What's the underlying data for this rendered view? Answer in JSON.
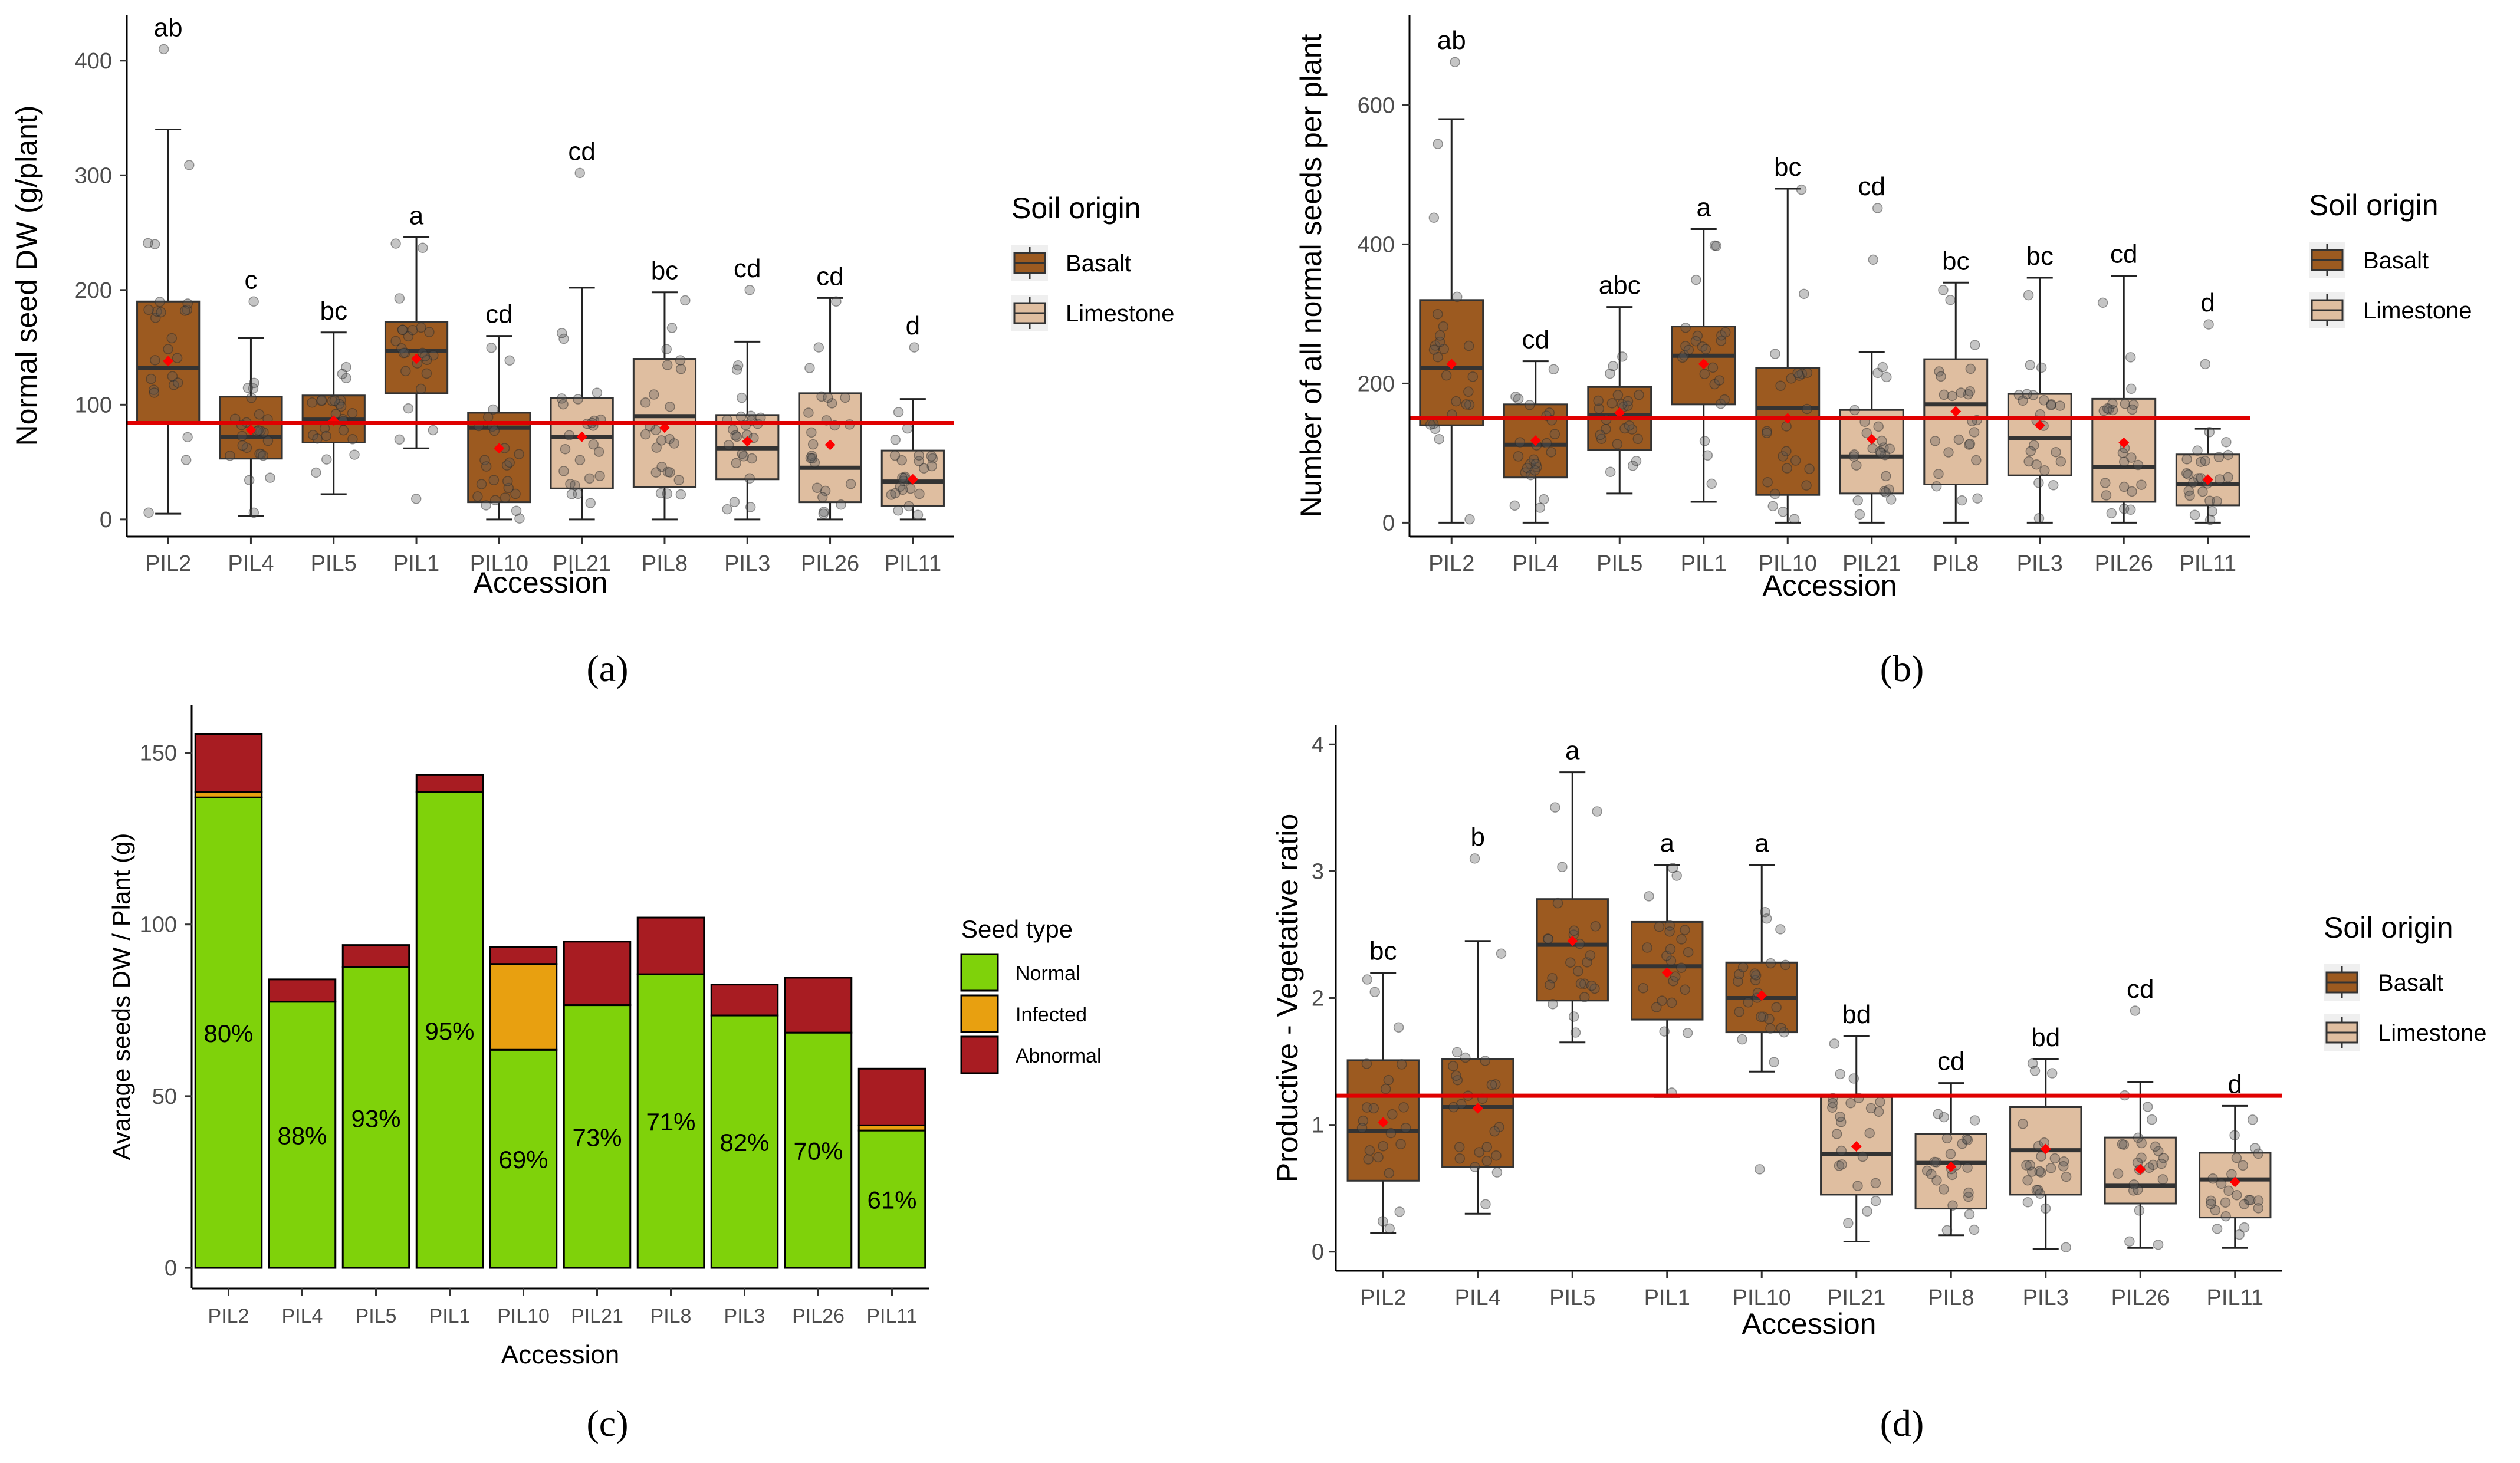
{
  "colors": {
    "basalt": "#9c5a20",
    "limestone": "#dfbea0",
    "refline": "#e00000",
    "normal": "#7fd20a",
    "infected": "#e8a010",
    "abnormal": "#a81c22",
    "mean": "#ff0000"
  },
  "legend_soil": {
    "title": "Soil origin",
    "items": [
      "Basalt",
      "Limestone"
    ]
  },
  "legend_seed": {
    "title": "Seed type",
    "items": [
      "Normal",
      "Infected",
      "Abnormal"
    ]
  },
  "chart_data": [
    {
      "type": "box",
      "panel_label": "(a)",
      "title": "",
      "xlabel": "Accession",
      "ylabel": "Normal seed DW (g/plant)",
      "categories": [
        "PIL2",
        "PIL4",
        "PIL5",
        "PIL1",
        "PIL10",
        "PIL21",
        "PIL8",
        "PIL3",
        "PIL26",
        "PIL11"
      ],
      "groups": [
        "Basalt",
        "Basalt",
        "Basalt",
        "Basalt",
        "Basalt",
        "Limestone",
        "Limestone",
        "Limestone",
        "Limestone",
        "Limestone"
      ],
      "ylim": [
        -15,
        440
      ],
      "yticks": [
        0,
        100,
        200,
        300,
        400
      ],
      "reference_line": 84,
      "boxes": [
        {
          "min": 5,
          "q1": 85,
          "median": 132,
          "q3": 190,
          "max": 340,
          "mean": 138
        },
        {
          "min": 3,
          "q1": 53,
          "median": 72,
          "q3": 107,
          "max": 158,
          "mean": 78
        },
        {
          "min": 22,
          "q1": 67,
          "median": 87,
          "q3": 108,
          "max": 163,
          "mean": 86
        },
        {
          "min": 62,
          "q1": 110,
          "median": 147,
          "q3": 172,
          "max": 246,
          "mean": 140
        },
        {
          "min": 0,
          "q1": 15,
          "median": 80,
          "q3": 93,
          "max": 160,
          "mean": 62
        },
        {
          "min": 0,
          "q1": 27,
          "median": 72,
          "q3": 106,
          "max": 202,
          "mean": 72
        },
        {
          "min": 0,
          "q1": 28,
          "median": 90,
          "q3": 140,
          "max": 198,
          "mean": 80
        },
        {
          "min": 0,
          "q1": 35,
          "median": 62,
          "q3": 91,
          "max": 155,
          "mean": 68
        },
        {
          "min": 0,
          "q1": 15,
          "median": 45,
          "q3": 110,
          "max": 193,
          "mean": 65
        },
        {
          "min": 0,
          "q1": 12,
          "median": 33,
          "q3": 60,
          "max": 105,
          "mean": 35
        }
      ],
      "outliers": [
        [
          410
        ],
        [
          190
        ],
        [],
        [
          18
        ],
        [],
        [
          302
        ],
        [],
        [
          200
        ],
        [],
        [
          150
        ]
      ],
      "letters": [
        "ab",
        "c",
        "bc",
        "a",
        "cd",
        "cd",
        "bc",
        "cd",
        "cd",
        "d"
      ]
    },
    {
      "type": "box",
      "panel_label": "(b)",
      "title": "",
      "xlabel": "Accession",
      "ylabel": "Number of all normal seeds per plant",
      "categories": [
        "PIL2",
        "PIL4",
        "PIL5",
        "PIL1",
        "PIL10",
        "PIL21",
        "PIL8",
        "PIL3",
        "PIL26",
        "PIL11"
      ],
      "groups": [
        "Basalt",
        "Basalt",
        "Basalt",
        "Basalt",
        "Basalt",
        "Limestone",
        "Limestone",
        "Limestone",
        "Limestone",
        "Limestone"
      ],
      "ylim": [
        -20,
        730
      ],
      "yticks": [
        0,
        200,
        400,
        600
      ],
      "reference_line": 150,
      "boxes": [
        {
          "min": 0,
          "q1": 140,
          "median": 222,
          "q3": 320,
          "max": 580,
          "mean": 228
        },
        {
          "min": 0,
          "q1": 65,
          "median": 112,
          "q3": 170,
          "max": 232,
          "mean": 118
        },
        {
          "min": 42,
          "q1": 105,
          "median": 155,
          "q3": 195,
          "max": 310,
          "mean": 158
        },
        {
          "min": 30,
          "q1": 170,
          "median": 240,
          "q3": 282,
          "max": 422,
          "mean": 228
        },
        {
          "min": 0,
          "q1": 40,
          "median": 165,
          "q3": 222,
          "max": 480,
          "mean": 150
        },
        {
          "min": 0,
          "q1": 42,
          "median": 95,
          "q3": 162,
          "max": 245,
          "mean": 120
        },
        {
          "min": 0,
          "q1": 55,
          "median": 170,
          "q3": 235,
          "max": 345,
          "mean": 160
        },
        {
          "min": 0,
          "q1": 68,
          "median": 122,
          "q3": 185,
          "max": 352,
          "mean": 140
        },
        {
          "min": 0,
          "q1": 30,
          "median": 80,
          "q3": 178,
          "max": 355,
          "mean": 115
        },
        {
          "min": 0,
          "q1": 25,
          "median": 55,
          "q3": 98,
          "max": 135,
          "mean": 62
        }
      ],
      "outliers": [
        [
          662
        ],
        [],
        [],
        [],
        [],
        [
          378,
          452
        ],
        [],
        [],
        [],
        [
          228,
          285
        ]
      ],
      "letters": [
        "ab",
        "cd",
        "abc",
        "a",
        "bc",
        "cd",
        "bc",
        "bc",
        "cd",
        "d"
      ]
    },
    {
      "type": "bar",
      "stacked": true,
      "panel_label": "(c)",
      "title": "",
      "xlabel": "Accession",
      "ylabel": "Avarage seeds DW / Plant (g)",
      "categories": [
        "PIL2",
        "PIL4",
        "PIL5",
        "PIL1",
        "PIL10",
        "PIL21",
        "PIL8",
        "PIL3",
        "PIL26",
        "PIL11"
      ],
      "ylim": [
        -6,
        164
      ],
      "yticks": [
        0,
        50,
        100,
        150
      ],
      "series": [
        {
          "name": "Normal",
          "values": [
            137,
            77.5,
            87.5,
            138.5,
            63.5,
            76.5,
            85.5,
            73.5,
            68.5,
            40
          ]
        },
        {
          "name": "Infected",
          "values": [
            1.5,
            0,
            0,
            0,
            25,
            0,
            0,
            0,
            0,
            1.5
          ]
        },
        {
          "name": "Abnormal",
          "values": [
            17,
            6.5,
            6.5,
            5,
            5,
            18.5,
            16.5,
            9,
            16,
            16.5
          ]
        }
      ],
      "bar_labels": [
        "80%",
        "88%",
        "93%",
        "95%",
        "69%",
        "73%",
        "71%",
        "82%",
        "70%",
        "61%"
      ]
    },
    {
      "type": "box",
      "panel_label": "(d)",
      "title": "",
      "xlabel": "Accession",
      "ylabel": "Productive - Vegetative ratio",
      "categories": [
        "PIL2",
        "PIL4",
        "PIL5",
        "PIL1",
        "PIL10",
        "PIL21",
        "PIL8",
        "PIL3",
        "PIL26",
        "PIL11"
      ],
      "groups": [
        "Basalt",
        "Basalt",
        "Basalt",
        "Basalt",
        "Basalt",
        "Limestone",
        "Limestone",
        "Limestone",
        "Limestone",
        "Limestone"
      ],
      "ylim": [
        -0.15,
        4.15
      ],
      "yticks": [
        0,
        1,
        2,
        3,
        4
      ],
      "reference_line": 1.23,
      "boxes": [
        {
          "min": 0.15,
          "q1": 0.56,
          "median": 0.95,
          "q3": 1.51,
          "max": 2.2,
          "mean": 1.02
        },
        {
          "min": 0.3,
          "q1": 0.67,
          "median": 1.14,
          "q3": 1.52,
          "max": 2.45,
          "mean": 1.13
        },
        {
          "min": 1.65,
          "q1": 1.98,
          "median": 2.42,
          "q3": 2.78,
          "max": 3.78,
          "mean": 2.45
        },
        {
          "min": 1.22,
          "q1": 1.83,
          "median": 2.25,
          "q3": 2.6,
          "max": 3.05,
          "mean": 2.2
        },
        {
          "min": 1.42,
          "q1": 1.73,
          "median": 2.0,
          "q3": 2.28,
          "max": 3.05,
          "mean": 2.02
        },
        {
          "min": 0.08,
          "q1": 0.45,
          "median": 0.77,
          "q3": 1.22,
          "max": 1.7,
          "mean": 0.83
        },
        {
          "min": 0.13,
          "q1": 0.34,
          "median": 0.7,
          "q3": 0.93,
          "max": 1.33,
          "mean": 0.67
        },
        {
          "min": 0.02,
          "q1": 0.45,
          "median": 0.8,
          "q3": 1.14,
          "max": 1.52,
          "mean": 0.81
        },
        {
          "min": 0.03,
          "q1": 0.38,
          "median": 0.52,
          "q3": 0.9,
          "max": 1.34,
          "mean": 0.65
        },
        {
          "min": 0.03,
          "q1": 0.27,
          "median": 0.57,
          "q3": 0.78,
          "max": 1.15,
          "mean": 0.55
        }
      ],
      "outliers": [
        [],
        [
          3.1
        ],
        [],
        [],
        [
          0.65
        ],
        [],
        [],
        [],
        [
          1.9
        ],
        []
      ],
      "letters": [
        "bc",
        "b",
        "a",
        "a",
        "a",
        "bd",
        "cd",
        "bd",
        "cd",
        "d"
      ]
    }
  ]
}
